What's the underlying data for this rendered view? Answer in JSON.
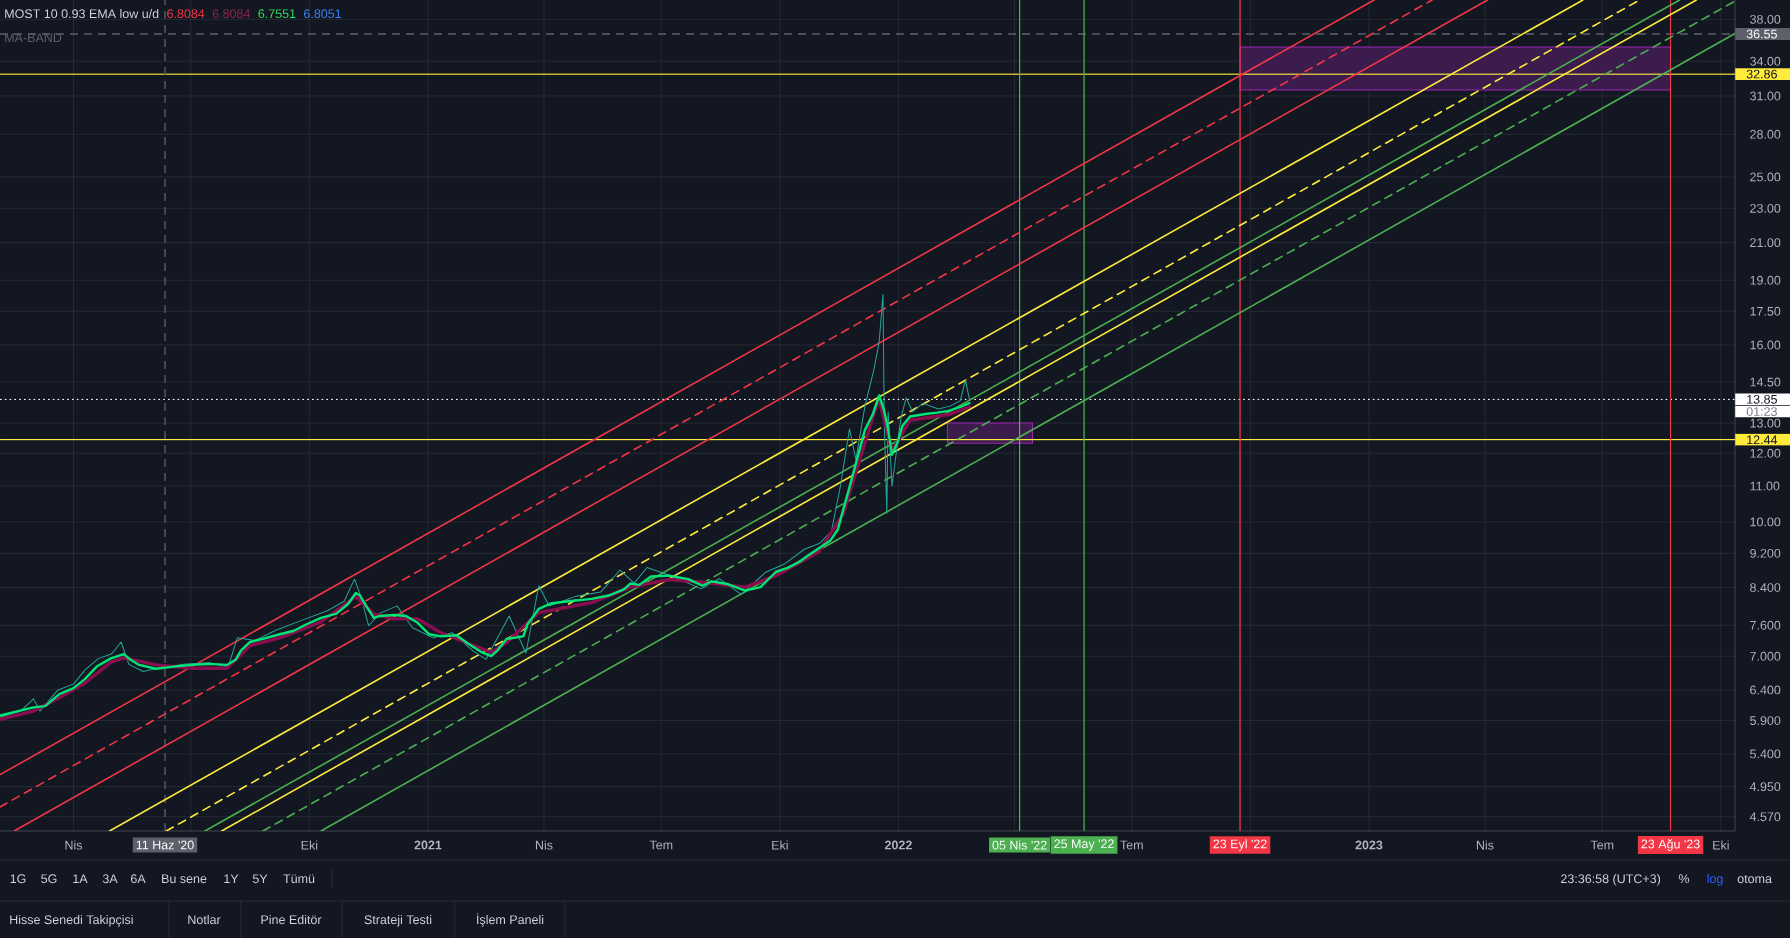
{
  "chart_data": {
    "type": "line",
    "title": "MOST 10 0.93 EMA low u/d",
    "xlim": [
      "2020-02-04",
      "2023-10-12"
    ],
    "ylim": [
      4.4,
      40
    ],
    "log": true,
    "grid": true,
    "xticks": [
      {
        "value": "2020-04-01",
        "label": "Nis"
      },
      {
        "value": "2020-07-01",
        "label": null
      },
      {
        "value": "2020-10-01",
        "label": "Eki"
      },
      {
        "value": "2021-01-01",
        "label": "2021"
      },
      {
        "value": "2021-04-01",
        "label": "Nis"
      },
      {
        "value": "2021-07-01",
        "label": "Tem"
      },
      {
        "value": "2021-10-01",
        "label": "Eki"
      },
      {
        "value": "2022-01-01",
        "label": "2022"
      },
      {
        "value": "2022-04-01",
        "label": null
      },
      {
        "value": "2022-07-01",
        "label": "Tem"
      },
      {
        "value": "2022-10-01",
        "label": null
      },
      {
        "value": "2023-01-01",
        "label": "2023"
      },
      {
        "value": "2023-04-01",
        "label": "Nis"
      },
      {
        "value": "2023-07-01",
        "label": "Tem"
      },
      {
        "value": "2023-10-01",
        "label": "Eki"
      }
    ],
    "yticks": [
      {
        "value": 38,
        "label": "38.00"
      },
      {
        "value": 34,
        "label": "34.00"
      },
      {
        "value": 31,
        "label": "31.00"
      },
      {
        "value": 28,
        "label": "28.00"
      },
      {
        "value": 25,
        "label": "25.00"
      },
      {
        "value": 23,
        "label": "23.00"
      },
      {
        "value": 21,
        "label": "21.00"
      },
      {
        "value": 19,
        "label": "19.00"
      },
      {
        "value": 17.5,
        "label": "17.50"
      },
      {
        "value": 16,
        "label": "16.00"
      },
      {
        "value": 14.5,
        "label": "14.50"
      },
      {
        "value": 13,
        "label": "13.00"
      },
      {
        "value": 12,
        "label": "12.00"
      },
      {
        "value": 11,
        "label": "11.00"
      },
      {
        "value": 10,
        "label": "10.00"
      },
      {
        "value": 9.2,
        "label": "9.200"
      },
      {
        "value": 8.4,
        "label": "8.400"
      },
      {
        "value": 7.6,
        "label": "7.600"
      },
      {
        "value": 7,
        "label": "7.000"
      },
      {
        "value": 6.4,
        "label": "6.400"
      },
      {
        "value": 5.9,
        "label": "5.900"
      },
      {
        "value": 5.4,
        "label": "5.400"
      },
      {
        "value": 4.95,
        "label": "4.950"
      },
      {
        "value": 4.57,
        "label": "4.570"
      }
    ],
    "series": [
      {
        "color": "#00e676",
        "x": [
          "2020-02-04",
          "2020-03-01",
          "2020-03-10",
          "2020-03-21",
          "2020-04-01",
          "2020-04-10",
          "2020-04-19",
          "2020-04-30",
          "2020-05-10",
          "2020-05-15",
          "2020-05-22",
          "2020-06-04",
          "2020-06-18",
          "2020-07-02",
          "2020-07-16",
          "2020-07-29",
          "2020-08-05",
          "2020-08-09",
          "2020-08-16",
          "2020-08-26",
          "2020-09-08",
          "2020-09-19",
          "2020-09-28",
          "2020-10-10",
          "2020-10-22",
          "2020-10-31",
          "2020-11-06",
          "2020-11-09",
          "2020-11-15",
          "2020-11-20",
          "2020-11-25",
          "2020-12-06",
          "2020-12-15",
          "2020-12-24",
          "2021-01-02",
          "2021-01-11",
          "2021-01-23",
          "2021-02-01",
          "2021-02-12",
          "2021-02-19",
          "2021-02-24",
          "2021-03-03",
          "2021-03-16",
          "2021-03-19",
          "2021-03-28",
          "2021-04-06",
          "2021-04-20",
          "2021-05-08",
          "2021-05-22",
          "2021-06-02",
          "2021-06-07",
          "2021-06-14",
          "2021-06-23",
          "2021-07-07",
          "2021-07-22",
          "2021-08-02",
          "2021-08-09",
          "2021-08-21",
          "2021-09-04",
          "2021-09-16",
          "2021-09-28",
          "2021-10-07",
          "2021-10-16",
          "2021-10-22",
          "2021-10-31",
          "2021-11-09",
          "2021-11-15",
          "2021-11-19",
          "2021-11-24",
          "2021-11-30",
          "2021-12-06",
          "2021-12-12",
          "2021-12-17",
          "2021-12-21",
          "2021-12-24",
          "2021-12-27",
          "2021-12-31",
          "2022-01-04",
          "2022-01-10",
          "2022-01-22",
          "2022-01-31",
          "2022-02-09",
          "2022-02-18",
          "2022-02-25"
        ],
        "values": [
          5.98,
          6.11,
          6.13,
          6.33,
          6.43,
          6.59,
          6.81,
          6.96,
          7.04,
          6.94,
          6.84,
          6.77,
          6.81,
          6.84,
          6.86,
          6.84,
          6.94,
          7.11,
          7.27,
          7.33,
          7.42,
          7.49,
          7.61,
          7.75,
          7.84,
          8.04,
          8.28,
          8.23,
          7.96,
          7.75,
          7.79,
          7.81,
          7.79,
          7.65,
          7.42,
          7.38,
          7.4,
          7.24,
          7.07,
          7.0,
          7.11,
          7.33,
          7.38,
          7.61,
          7.94,
          8.05,
          8.1,
          8.15,
          8.23,
          8.36,
          8.49,
          8.46,
          8.65,
          8.67,
          8.59,
          8.44,
          8.54,
          8.48,
          8.33,
          8.41,
          8.76,
          8.85,
          8.99,
          9.13,
          9.32,
          9.51,
          9.8,
          10.31,
          10.96,
          11.83,
          12.77,
          13.3,
          13.99,
          13.43,
          12.77,
          11.95,
          12.32,
          12.9,
          13.23,
          13.32,
          13.37,
          13.43,
          13.57,
          13.71
        ]
      },
      {
        "color": "#880e4f",
        "x": [
          "2020-02-04",
          "2020-03-01",
          "2020-03-21",
          "2020-04-10",
          "2020-04-30",
          "2020-05-10",
          "2020-05-22",
          "2020-06-04",
          "2020-07-02",
          "2020-07-29",
          "2020-08-16",
          "2020-09-08",
          "2020-10-10",
          "2020-11-06",
          "2020-11-20",
          "2020-12-06",
          "2020-12-24",
          "2021-01-11",
          "2021-02-12",
          "2021-02-19",
          "2021-03-03",
          "2021-03-28",
          "2021-05-08",
          "2021-06-07",
          "2021-07-07",
          "2021-08-02",
          "2021-09-04",
          "2021-09-28",
          "2021-10-31",
          "2021-11-19",
          "2021-12-12",
          "2021-12-17",
          "2021-12-27",
          "2022-01-10",
          "2022-02-09",
          "2022-02-25"
        ],
        "values": [
          5.92,
          6.05,
          6.27,
          6.52,
          6.89,
          6.97,
          6.91,
          6.84,
          6.78,
          6.78,
          7.2,
          7.35,
          7.67,
          8.2,
          7.83,
          7.73,
          7.73,
          7.45,
          7.14,
          7.07,
          7.26,
          7.86,
          8.07,
          8.41,
          8.58,
          8.52,
          8.41,
          8.67,
          9.23,
          10.2,
          13.2,
          13.85,
          12.07,
          13.1,
          13.3,
          13.57
        ]
      },
      {
        "color": "#26a69a",
        "x": [
          "2020-02-04",
          "2020-02-20",
          "2020-03-01",
          "2020-03-06",
          "2020-03-20",
          "2020-04-01",
          "2020-04-10",
          "2020-04-20",
          "2020-05-01",
          "2020-05-08",
          "2020-05-14",
          "2020-05-25",
          "2020-06-10",
          "2020-06-25",
          "2020-07-15",
          "2020-07-30",
          "2020-08-06",
          "2020-08-20",
          "2020-09-05",
          "2020-09-25",
          "2020-10-15",
          "2020-10-28",
          "2020-11-05",
          "2020-11-10",
          "2020-11-16",
          "2020-11-25",
          "2020-12-08",
          "2020-12-20",
          "2021-01-05",
          "2021-01-20",
          "2021-02-05",
          "2021-02-15",
          "2021-02-25",
          "2021-03-05",
          "2021-03-18",
          "2021-03-28",
          "2021-04-05",
          "2021-04-25",
          "2021-05-15",
          "2021-05-30",
          "2021-06-10",
          "2021-06-20",
          "2021-07-10",
          "2021-08-01",
          "2021-08-15",
          "2021-09-01",
          "2021-09-20",
          "2021-10-05",
          "2021-10-20",
          "2021-11-01",
          "2021-11-10",
          "2021-11-17",
          "2021-11-24",
          "2021-11-29",
          "2021-12-06",
          "2021-12-13",
          "2021-12-17",
          "2021-12-20",
          "2021-12-21",
          "2021-12-23",
          "2021-12-24",
          "2021-12-27",
          "2021-12-29",
          "2022-01-03",
          "2022-01-07",
          "2022-01-12",
          "2022-01-20",
          "2022-02-01",
          "2022-02-10",
          "2022-02-18",
          "2022-02-22",
          "2022-02-25"
        ],
        "values": [
          5.95,
          6.05,
          6.25,
          6.05,
          6.4,
          6.5,
          6.75,
          6.95,
          7.05,
          7.27,
          6.85,
          6.72,
          6.8,
          6.85,
          6.88,
          6.8,
          7.35,
          7.3,
          7.5,
          7.7,
          7.9,
          8.1,
          8.59,
          8.2,
          7.59,
          7.85,
          8.0,
          7.55,
          7.35,
          7.45,
          7.1,
          6.94,
          7.4,
          7.79,
          7.06,
          8.44,
          8.0,
          8.2,
          8.3,
          8.8,
          8.5,
          8.86,
          8.65,
          8.37,
          8.6,
          8.25,
          8.75,
          8.95,
          9.3,
          9.45,
          9.75,
          11.0,
          12.8,
          11.8,
          13.6,
          15.0,
          16.1,
          18.3,
          13.0,
          10.23,
          13.4,
          11.0,
          11.6,
          13.2,
          13.9,
          13.4,
          13.7,
          13.5,
          13.6,
          13.8,
          14.58,
          13.85
        ]
      },
      {
        "color": "#f23645",
        "x": [
          "2020-02-04",
          "2023-01-05"
        ],
        "values": [
          5.11,
          40
        ]
      },
      {
        "color": "#f23645",
        "line_style": "dashed",
        "x": [
          "2020-02-04",
          "2023-02-19"
        ],
        "values": [
          4.69,
          40
        ]
      },
      {
        "color": "#f23645",
        "x": [
          "2020-02-15",
          "2023-04-03"
        ],
        "values": [
          4.4,
          40
        ]
      },
      {
        "color": "#ffeb3b",
        "x": [
          "2020-04-29",
          "2023-06-16"
        ],
        "values": [
          4.4,
          40
        ]
      },
      {
        "color": "#ffeb3b",
        "line_style": "dashed",
        "x": [
          "2020-06-12",
          "2023-07-30"
        ],
        "values": [
          4.4,
          40
        ]
      },
      {
        "color": "#4caf50",
        "x": [
          "2020-07-12",
          "2023-08-30"
        ],
        "values": [
          4.4,
          40
        ]
      },
      {
        "color": "#ffeb3b",
        "x": [
          "2020-07-25",
          "2023-09-12"
        ],
        "values": [
          4.4,
          40
        ]
      },
      {
        "color": "#4caf50",
        "line_style": "dashed",
        "x": [
          "2020-08-26",
          "2023-10-12"
        ],
        "values": [
          4.4,
          39.9
        ]
      },
      {
        "color": "#4caf50",
        "x": [
          "2020-10-10",
          "2023-10-12"
        ],
        "values": [
          4.4,
          36.6
        ]
      },
      {
        "color": "#9c27b0",
        "x": [
          "2022-02-08",
          "2022-04-15"
        ],
        "values": [
          null,
          null
        ],
        "lower": [
          12.32,
          12.32
        ],
        "upper": [
          13.0,
          13.0
        ]
      },
      {
        "color": "#9c27b0",
        "x": [
          "2022-09-23",
          "2023-08-23"
        ],
        "values": [
          null,
          null
        ],
        "lower": [
          31.5,
          31.5
        ],
        "upper": [
          35.3,
          35.3
        ]
      }
    ],
    "ref_lines": [
      {
        "axis": "y",
        "value": 32.86,
        "label": "32.86",
        "color": "#ffeb3b"
      },
      {
        "axis": "y",
        "value": 12.44,
        "label": "12.44",
        "color": "#ffeb3b"
      },
      {
        "axis": "y",
        "value": 13.85,
        "label": "13.85",
        "color": "#ffffff",
        "line_style": "dotted"
      },
      {
        "axis": "y",
        "value": 36.55,
        "label": "36.55",
        "color": "#5d606b",
        "line_style": "dashed"
      },
      {
        "axis": "x",
        "value": "2020-06-11",
        "label": "11 Haz '20",
        "color": "#5d606b",
        "line_style": "dashed"
      },
      {
        "axis": "x",
        "value": "2022-04-05",
        "label": "05 Nis '22",
        "color": "#4caf50"
      },
      {
        "axis": "x",
        "value": "2022-05-25",
        "label": "25 May '22",
        "color": "#4caf50"
      },
      {
        "axis": "x",
        "value": "2022-09-23",
        "label": "23 Eyl '22",
        "color": "#f23645"
      },
      {
        "axis": "x",
        "value": "2023-08-23",
        "label": "23 Ağu '23",
        "color": "#f23645"
      }
    ],
    "annotations": [
      "6.8084",
      "6.8084",
      "6.7551",
      "6.8051",
      "MA-BAND",
      "01:23",
      "1G",
      "5G",
      "1A",
      "3A",
      "6A",
      "Bu sene",
      "1Y",
      "5Y",
      "Tümü",
      "23:36:58 (UTC+3)",
      "%",
      "log",
      "otoma",
      "Hisse Senedi Takipçisi",
      "Notlar",
      "Pine Editör",
      "Strateji Testi",
      "İşlem Paneli"
    ]
  }
}
